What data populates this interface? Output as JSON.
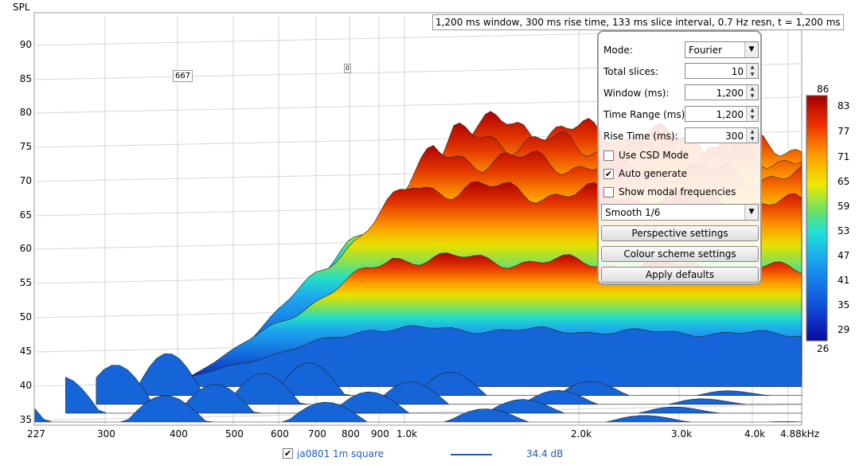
{
  "chart": {
    "y_axis_title": "SPL",
    "y_ticks": [
      "90",
      "85",
      "80",
      "75",
      "70",
      "65",
      "60",
      "55",
      "50",
      "45",
      "40",
      "35"
    ],
    "x_ticks": [
      "227",
      "300",
      "400",
      "500",
      "600",
      "700",
      "800",
      "900",
      "1.0k",
      "2.0k",
      "3.0k",
      "4.0k",
      "4.88kHz"
    ],
    "info_text": "1,200 ms window, 300 ms rise time, 133 ms slice interval, 0.7 Hz resn, t = 1,200 ms",
    "marker_1": "667",
    "marker_2": "0"
  },
  "chart_data": {
    "type": "area",
    "title": "",
    "ylabel": "SPL",
    "xlabel": "",
    "x_scale": "log",
    "xlim": [
      227,
      4880
    ],
    "ylim": [
      34,
      93
    ],
    "slices": 10,
    "approx_slice_peak_spl": [
      84,
      82,
      79,
      74,
      62,
      50,
      46,
      44,
      42,
      40
    ]
  },
  "controls": {
    "mode_label": "Mode:",
    "mode_value": "Fourier",
    "total_slices_label": "Total slices:",
    "total_slices_value": "10",
    "window_label": "Window (ms):",
    "window_value": "1,200",
    "time_range_label": "Time Range (ms):",
    "time_range_value": "1,200",
    "rise_time_label": "Rise Time (ms):",
    "rise_time_value": "300",
    "use_csd_label": "Use CSD Mode",
    "use_csd_checked": false,
    "auto_generate_label": "Auto generate",
    "auto_generate_checked": true,
    "show_modal_label": "Show modal frequencies",
    "show_modal_checked": false,
    "smoothing_value": "Smooth 1/6",
    "perspective_button": "Perspective settings",
    "colour_button": "Colour scheme settings",
    "defaults_button": "Apply defaults"
  },
  "colorbar": {
    "top": "86",
    "bottom": "26",
    "ticks": [
      "83",
      "77",
      "71",
      "65",
      "59",
      "53",
      "47",
      "41",
      "35",
      "29"
    ]
  },
  "legend": {
    "name": "ja0801 1m square",
    "value": "34.4 dB",
    "checked": true,
    "color": "#1f5bc4"
  }
}
